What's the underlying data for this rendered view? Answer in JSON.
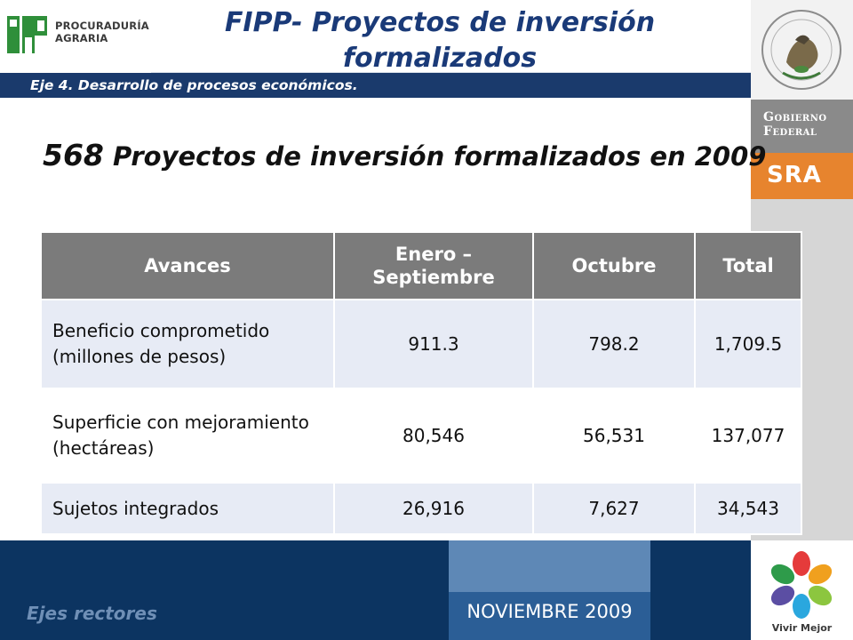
{
  "header": {
    "org_logo_line1": "PROCURADURÍA",
    "org_logo_line2": "AGRARIA",
    "title_line1": "FIPP- Proyectos de inversión",
    "title_line2": "formalizados",
    "subtitle": "Eje 4. Desarrollo de procesos económicos."
  },
  "sidebar": {
    "seal_caption": "ESTADOS UNIDOS MEXICANOS",
    "gobierno_line1": "Gobierno",
    "gobierno_line2": "Federal",
    "sra": "SRA"
  },
  "headline": {
    "number": "568",
    "text": " Proyectos de inversión formalizados en 2009"
  },
  "table": {
    "headers": [
      "Avances",
      "Enero – Septiembre",
      "Octubre",
      "Total"
    ],
    "rows": [
      {
        "label": "Beneficio comprometido (millones de pesos)",
        "ene_sep": "911.3",
        "octubre": "798.2",
        "total": "1,709.5"
      },
      {
        "label": "Superficie con mejoramiento (hectáreas)",
        "ene_sep": "80,546",
        "octubre": "56,531",
        "total": "137,077"
      },
      {
        "label": "Sujetos integrados",
        "ene_sep": "26,916",
        "octubre": "7,627",
        "total": "34,543"
      }
    ]
  },
  "footer": {
    "left_text": "Ejes rectores",
    "date": "NOVIEMBRE 2009",
    "vivir_mejor": "Vivir Mejor"
  },
  "colors": {
    "title_blue": "#1a3a78",
    "band_navy": "#1a3a6c",
    "footer_navy": "#0c3461",
    "header_gray": "#7b7b7b",
    "row_tint": "#e7ebf5",
    "sra_orange": "#e7842e"
  }
}
